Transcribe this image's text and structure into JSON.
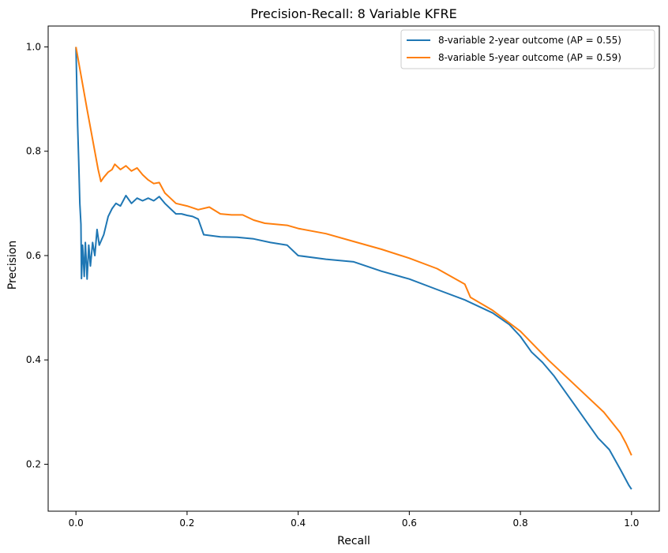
{
  "chart_data": {
    "type": "line",
    "title": "Precision-Recall: 8 Variable KFRE",
    "xlabel": "Recall",
    "ylabel": "Precision",
    "xlim": [
      -0.05,
      1.05
    ],
    "ylim": [
      0.11,
      1.04
    ],
    "xticks": [
      0.0,
      0.2,
      0.4,
      0.6,
      0.8,
      1.0
    ],
    "xtick_labels": [
      "0.0",
      "0.2",
      "0.4",
      "0.6",
      "0.8",
      "1.0"
    ],
    "yticks": [
      0.2,
      0.4,
      0.6,
      0.8,
      1.0
    ],
    "ytick_labels": [
      "0.2",
      "0.4",
      "0.6",
      "0.8",
      "1.0"
    ],
    "grid": false,
    "legend_position": "top-right",
    "series": [
      {
        "name": "8-variable 2-year outcome (AP = 0.55)",
        "color": "#1f77b4",
        "points": [
          [
            0.0,
            1.0
          ],
          [
            0.001,
            0.95
          ],
          [
            0.003,
            0.85
          ],
          [
            0.005,
            0.78
          ],
          [
            0.007,
            0.7
          ],
          [
            0.009,
            0.66
          ],
          [
            0.01,
            0.556
          ],
          [
            0.012,
            0.62
          ],
          [
            0.015,
            0.56
          ],
          [
            0.017,
            0.625
          ],
          [
            0.02,
            0.555
          ],
          [
            0.023,
            0.62
          ],
          [
            0.026,
            0.58
          ],
          [
            0.03,
            0.625
          ],
          [
            0.034,
            0.6
          ],
          [
            0.038,
            0.65
          ],
          [
            0.042,
            0.62
          ],
          [
            0.05,
            0.64
          ],
          [
            0.058,
            0.675
          ],
          [
            0.065,
            0.69
          ],
          [
            0.072,
            0.7
          ],
          [
            0.08,
            0.695
          ],
          [
            0.09,
            0.715
          ],
          [
            0.1,
            0.7
          ],
          [
            0.11,
            0.71
          ],
          [
            0.12,
            0.705
          ],
          [
            0.13,
            0.71
          ],
          [
            0.14,
            0.705
          ],
          [
            0.15,
            0.713
          ],
          [
            0.16,
            0.7
          ],
          [
            0.17,
            0.69
          ],
          [
            0.18,
            0.68
          ],
          [
            0.19,
            0.68
          ],
          [
            0.2,
            0.677
          ],
          [
            0.21,
            0.675
          ],
          [
            0.22,
            0.67
          ],
          [
            0.23,
            0.64
          ],
          [
            0.26,
            0.636
          ],
          [
            0.29,
            0.635
          ],
          [
            0.32,
            0.632
          ],
          [
            0.35,
            0.625
          ],
          [
            0.38,
            0.62
          ],
          [
            0.4,
            0.6
          ],
          [
            0.45,
            0.593
          ],
          [
            0.5,
            0.588
          ],
          [
            0.55,
            0.57
          ],
          [
            0.6,
            0.555
          ],
          [
            0.65,
            0.535
          ],
          [
            0.7,
            0.515
          ],
          [
            0.75,
            0.49
          ],
          [
            0.78,
            0.468
          ],
          [
            0.8,
            0.445
          ],
          [
            0.82,
            0.415
          ],
          [
            0.84,
            0.395
          ],
          [
            0.86,
            0.37
          ],
          [
            0.88,
            0.34
          ],
          [
            0.9,
            0.31
          ],
          [
            0.92,
            0.28
          ],
          [
            0.94,
            0.25
          ],
          [
            0.96,
            0.228
          ],
          [
            0.98,
            0.19
          ],
          [
            0.995,
            0.16
          ],
          [
            1.0,
            0.152
          ]
        ]
      },
      {
        "name": "8-variable 5-year outcome (AP = 0.59)",
        "color": "#ff7f0e",
        "points": [
          [
            0.0,
            1.0
          ],
          [
            0.02,
            0.88
          ],
          [
            0.04,
            0.765
          ],
          [
            0.045,
            0.742
          ],
          [
            0.05,
            0.75
          ],
          [
            0.058,
            0.76
          ],
          [
            0.065,
            0.765
          ],
          [
            0.07,
            0.775
          ],
          [
            0.08,
            0.765
          ],
          [
            0.09,
            0.772
          ],
          [
            0.1,
            0.762
          ],
          [
            0.11,
            0.768
          ],
          [
            0.12,
            0.755
          ],
          [
            0.13,
            0.745
          ],
          [
            0.14,
            0.738
          ],
          [
            0.15,
            0.74
          ],
          [
            0.16,
            0.72
          ],
          [
            0.17,
            0.71
          ],
          [
            0.18,
            0.7
          ],
          [
            0.2,
            0.695
          ],
          [
            0.22,
            0.688
          ],
          [
            0.24,
            0.693
          ],
          [
            0.26,
            0.68
          ],
          [
            0.28,
            0.678
          ],
          [
            0.3,
            0.678
          ],
          [
            0.32,
            0.668
          ],
          [
            0.34,
            0.662
          ],
          [
            0.38,
            0.658
          ],
          [
            0.4,
            0.652
          ],
          [
            0.45,
            0.642
          ],
          [
            0.5,
            0.627
          ],
          [
            0.55,
            0.612
          ],
          [
            0.6,
            0.595
          ],
          [
            0.65,
            0.575
          ],
          [
            0.7,
            0.545
          ],
          [
            0.71,
            0.52
          ],
          [
            0.75,
            0.495
          ],
          [
            0.8,
            0.455
          ],
          [
            0.85,
            0.4
          ],
          [
            0.9,
            0.35
          ],
          [
            0.95,
            0.3
          ],
          [
            0.98,
            0.26
          ],
          [
            0.99,
            0.24
          ],
          [
            1.0,
            0.217
          ]
        ]
      }
    ]
  }
}
